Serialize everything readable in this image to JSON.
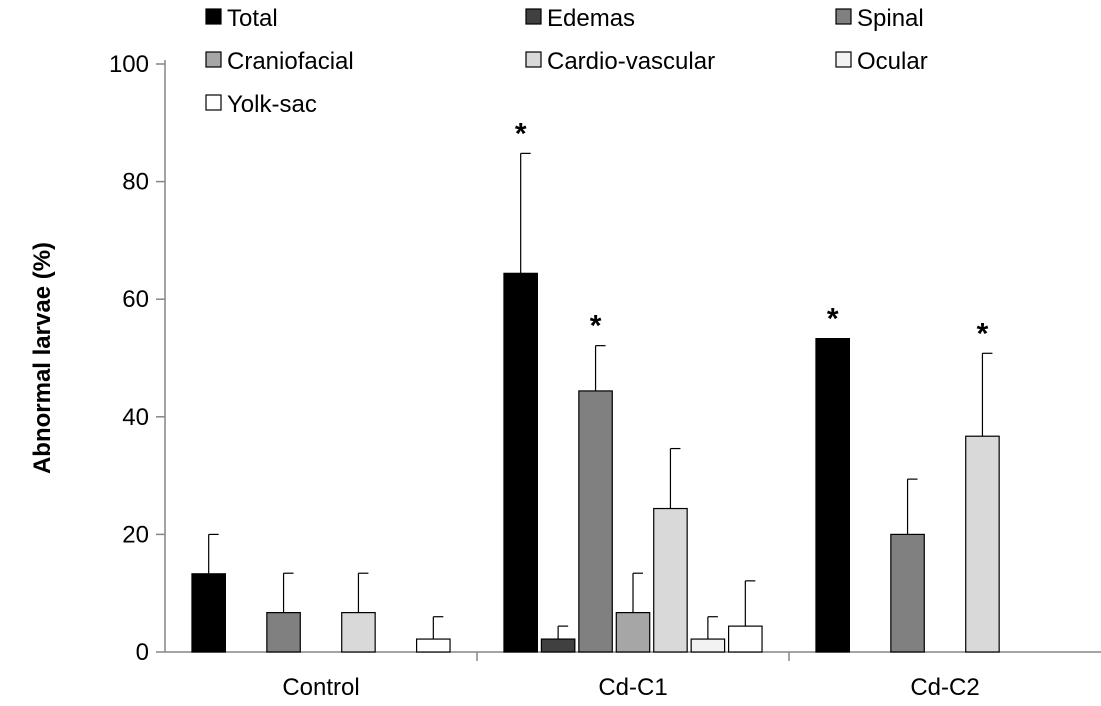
{
  "chart_data": {
    "type": "bar",
    "ylabel": "Abnormal larvae (%)",
    "ylim": [
      0,
      100
    ],
    "yticks": [
      0,
      20,
      40,
      60,
      80,
      100
    ],
    "categories": [
      "Control",
      "Cd-C1",
      "Cd-C2"
    ],
    "legend_position": "top",
    "series": [
      {
        "name": "Total",
        "color": "#000000",
        "values": [
          13.3,
          64.4,
          53.3
        ],
        "errors": [
          6.7,
          20.4,
          0
        ],
        "significant": [
          false,
          true,
          true
        ]
      },
      {
        "name": "Edemas",
        "color": "#404040",
        "values": [
          0,
          2.2,
          0
        ],
        "errors": [
          0,
          2.2,
          0
        ],
        "significant": [
          false,
          false,
          false
        ]
      },
      {
        "name": "Spinal",
        "color": "#808080",
        "values": [
          6.7,
          44.4,
          20.0
        ],
        "errors": [
          6.7,
          7.7,
          9.4
        ],
        "significant": [
          false,
          true,
          false
        ]
      },
      {
        "name": "Craniofacial",
        "color": "#a6a6a6",
        "values": [
          0,
          6.7,
          0
        ],
        "errors": [
          0,
          6.7,
          0
        ],
        "significant": [
          false,
          false,
          false
        ]
      },
      {
        "name": "Cardio-vascular",
        "color": "#d9d9d9",
        "values": [
          6.7,
          24.4,
          36.7
        ],
        "errors": [
          6.7,
          10.2,
          14.1
        ],
        "significant": [
          false,
          false,
          true
        ]
      },
      {
        "name": "Ocular",
        "color": "#f2f2f2",
        "values": [
          0,
          2.2,
          0
        ],
        "errors": [
          0,
          3.8,
          0
        ],
        "significant": [
          false,
          false,
          false
        ]
      },
      {
        "name": "Yolk-sac",
        "color": "#ffffff",
        "values": [
          2.2,
          4.4,
          0
        ],
        "errors": [
          3.8,
          7.7,
          0
        ],
        "significant": [
          false,
          false,
          false
        ]
      }
    ],
    "significance_marker": "*"
  }
}
